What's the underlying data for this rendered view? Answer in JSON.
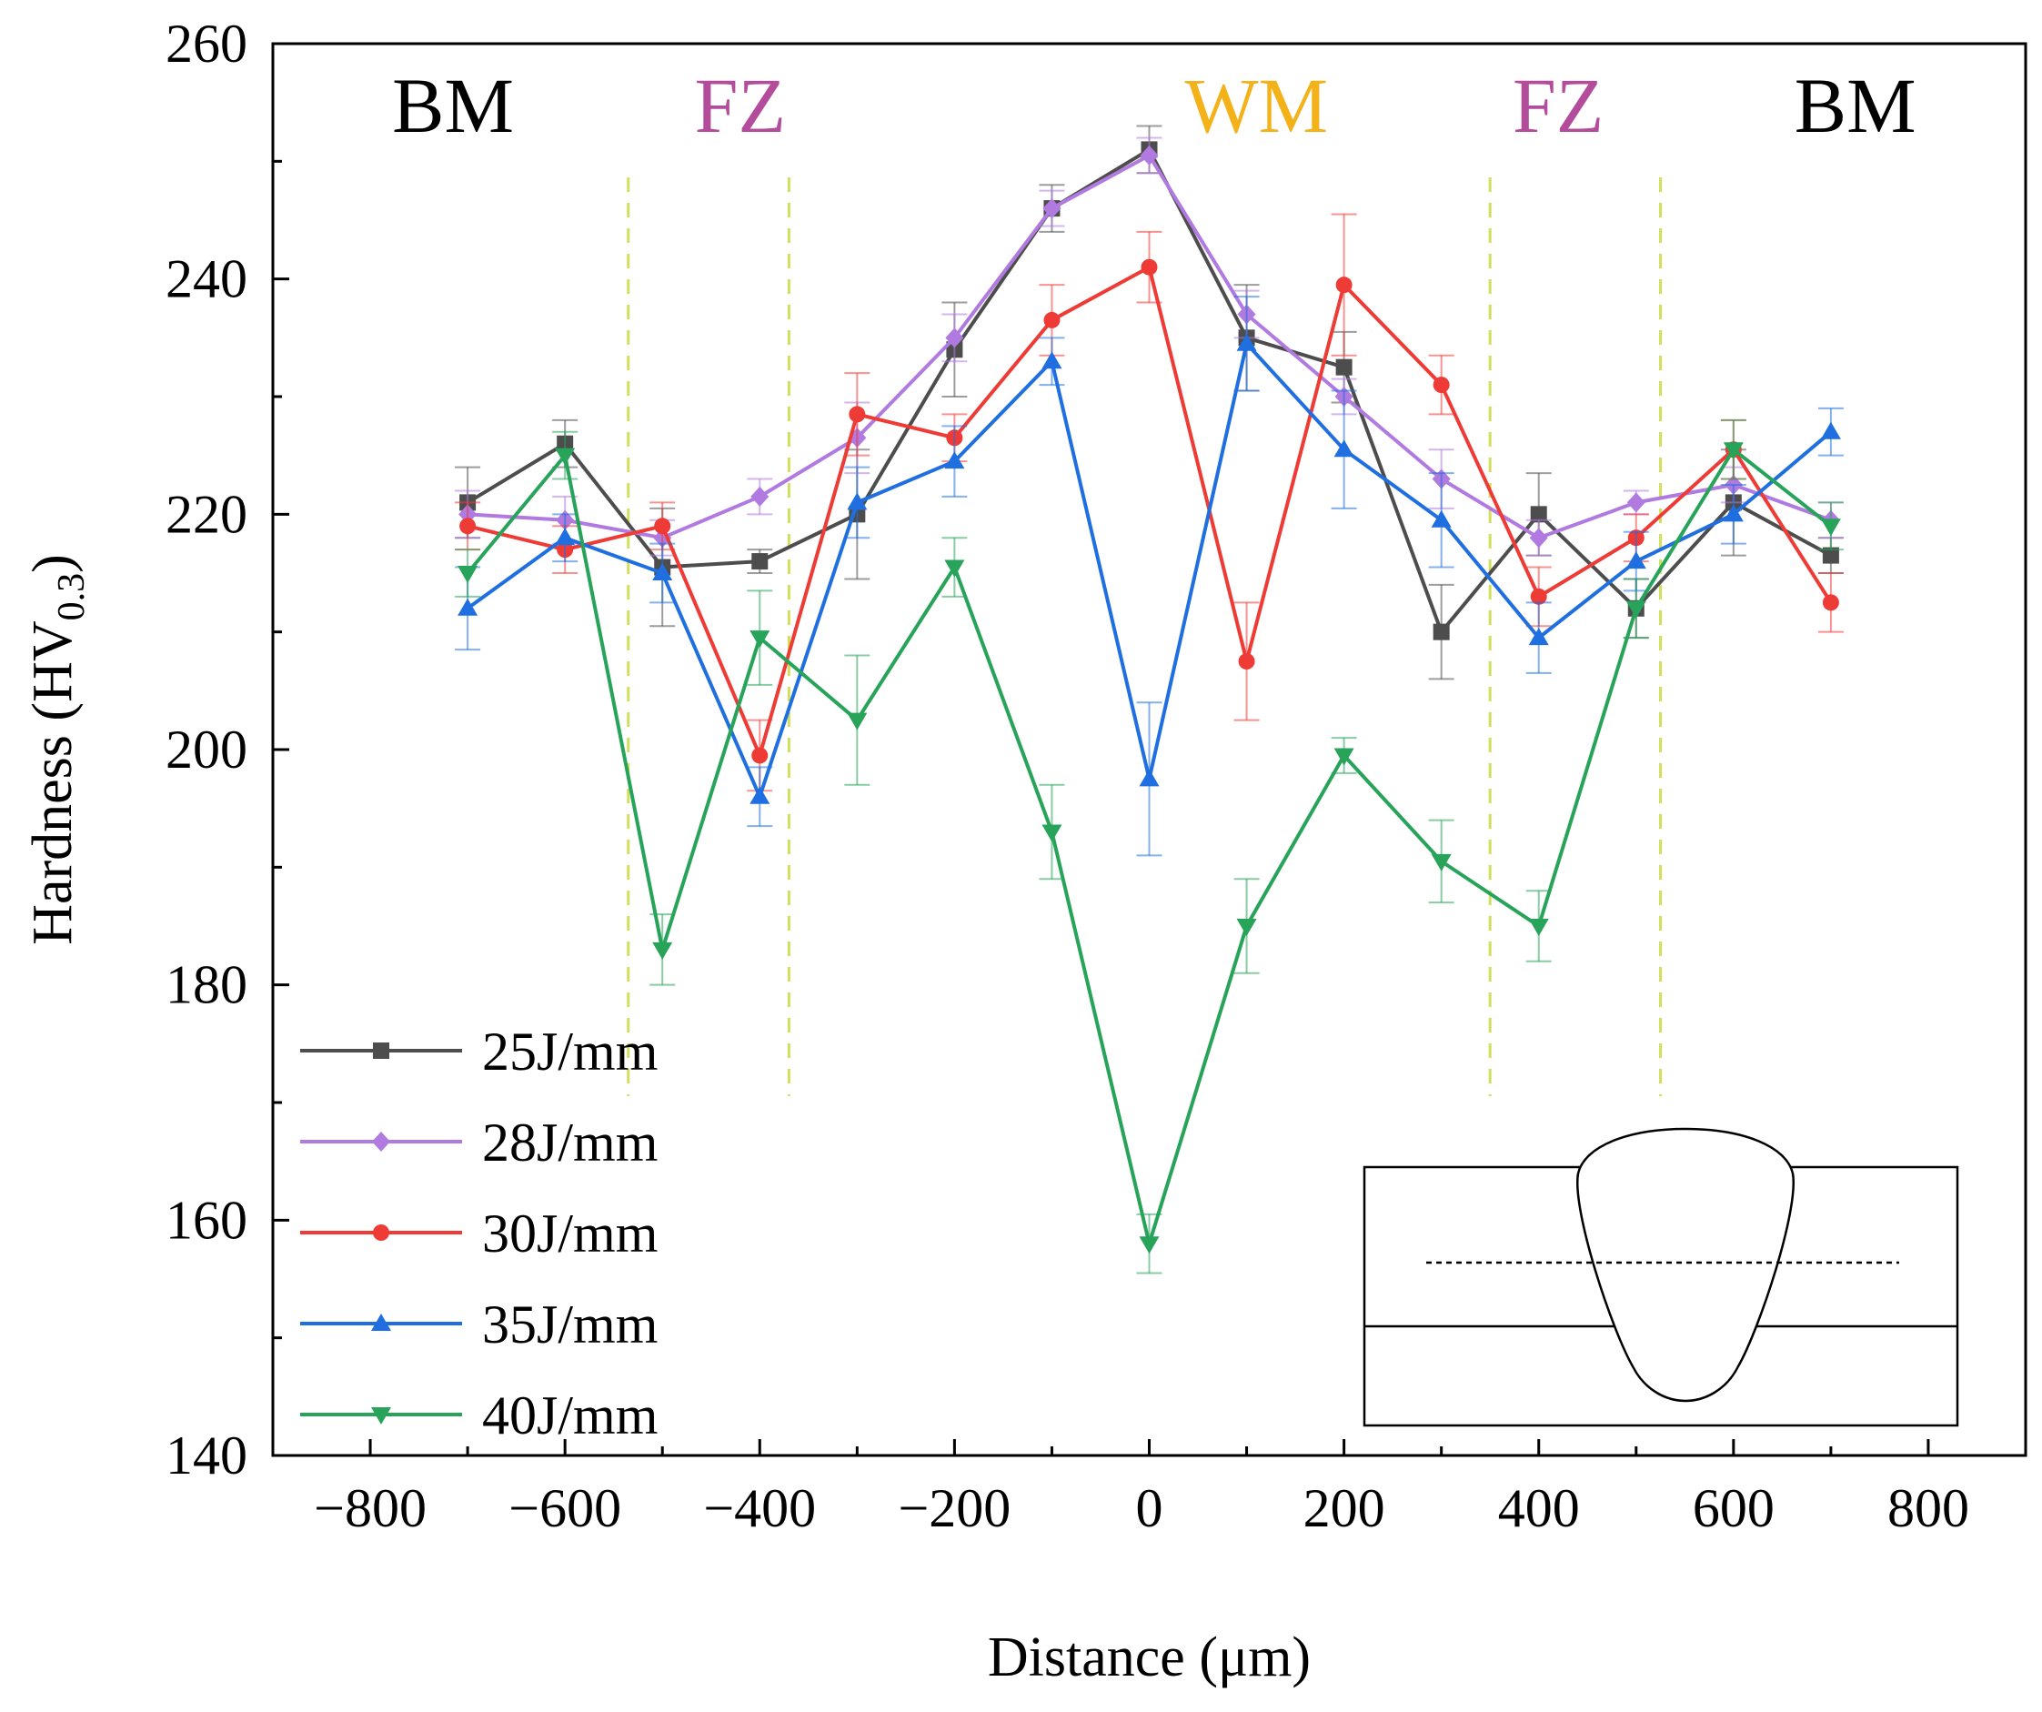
{
  "chart_data": {
    "type": "line",
    "xlabel": "Distance (μm)",
    "ylabel": {
      "main": "Hardness (HV",
      "subscript": "0.3",
      "close": ")"
    },
    "xlim": [
      -900,
      900
    ],
    "ylim": [
      140,
      260
    ],
    "x_ticks": [
      -800,
      -600,
      -400,
      -200,
      0,
      200,
      400,
      600,
      800
    ],
    "x_tick_labels": [
      "−800",
      "−600",
      "−400",
      "−200",
      "0",
      "200",
      "400",
      "600",
      "800"
    ],
    "y_ticks": [
      140,
      160,
      180,
      200,
      220,
      240,
      260
    ],
    "y_tick_labels": [
      "140",
      "160",
      "180",
      "200",
      "220",
      "240",
      "260"
    ],
    "x_minor_step": 100,
    "y_minor_step": 10,
    "grid": false,
    "legend_position": "bottom-left",
    "region_boundaries": [
      -535,
      -370,
      350,
      525
    ],
    "region_labels": [
      {
        "text": "BM",
        "x": -715,
        "color": "#000000"
      },
      {
        "text": "FZ",
        "x": -420,
        "color": "#b44c9c"
      },
      {
        "text": "WM",
        "x": 110,
        "color": "#f3b21a"
      },
      {
        "text": "FZ",
        "x": 420,
        "color": "#b44c9c"
      },
      {
        "text": "BM",
        "x": 725,
        "color": "#000000"
      }
    ],
    "boundary_color": "#d3df5a",
    "x": [
      -700,
      -600,
      -500,
      -400,
      -300,
      -200,
      -100,
      0,
      100,
      200,
      300,
      400,
      500,
      600,
      700
    ],
    "series": [
      {
        "name": "25J/mm",
        "color": "#4d4d4d",
        "marker": "square",
        "values": [
          221,
          226,
          215.5,
          216,
          220,
          234,
          246,
          251,
          235,
          232.5,
          210,
          220,
          212,
          221,
          216.5
        ],
        "errors": [
          3,
          2,
          5,
          1,
          5.5,
          4,
          2,
          2,
          4.5,
          3,
          4,
          3.5,
          2.5,
          4.5,
          1.5
        ]
      },
      {
        "name": "28J/mm",
        "color": "#b07ae0",
        "marker": "diamond",
        "values": [
          220,
          219.5,
          218,
          221.5,
          226.5,
          235,
          246,
          250.5,
          237,
          230,
          223,
          218,
          221,
          222.5,
          219.5
        ],
        "errors": [
          2,
          2,
          1.5,
          1.5,
          3,
          2,
          1.5,
          1.5,
          2,
          1.5,
          2.5,
          1.5,
          1,
          1.5,
          1.5
        ]
      },
      {
        "name": "30J/mm",
        "color": "#ee3b36",
        "marker": "circle",
        "values": [
          219,
          217,
          219,
          199.5,
          228.5,
          226.5,
          236.5,
          241,
          207.5,
          239.5,
          231,
          213,
          218,
          225.5,
          212.5
        ],
        "errors": [
          2,
          2,
          2,
          3,
          3.5,
          2,
          3,
          3,
          5,
          6,
          2.5,
          2.5,
          2,
          2.5,
          2.5
        ]
      },
      {
        "name": "35J/mm",
        "color": "#1f6fe0",
        "marker": "triangle-up",
        "values": [
          212,
          218,
          215,
          196,
          221,
          224.5,
          233,
          197.5,
          234.5,
          225.5,
          219.5,
          209.5,
          216,
          220,
          227
        ],
        "errors": [
          3.5,
          2,
          2.5,
          2.5,
          3,
          3,
          2,
          6.5,
          4,
          5,
          4,
          3,
          2.5,
          2.5,
          2
        ]
      },
      {
        "name": "40J/mm",
        "color": "#27a35a",
        "marker": "triangle-down",
        "values": [
          215,
          225,
          183,
          209.5,
          202.5,
          215.5,
          193,
          158,
          185,
          199.5,
          190.5,
          185,
          212,
          225.5,
          219
        ],
        "errors": [
          2,
          2,
          3,
          4,
          5.5,
          2.5,
          4,
          2.5,
          4,
          1.5,
          3.5,
          3,
          2.5,
          2.5,
          2
        ]
      }
    ]
  }
}
